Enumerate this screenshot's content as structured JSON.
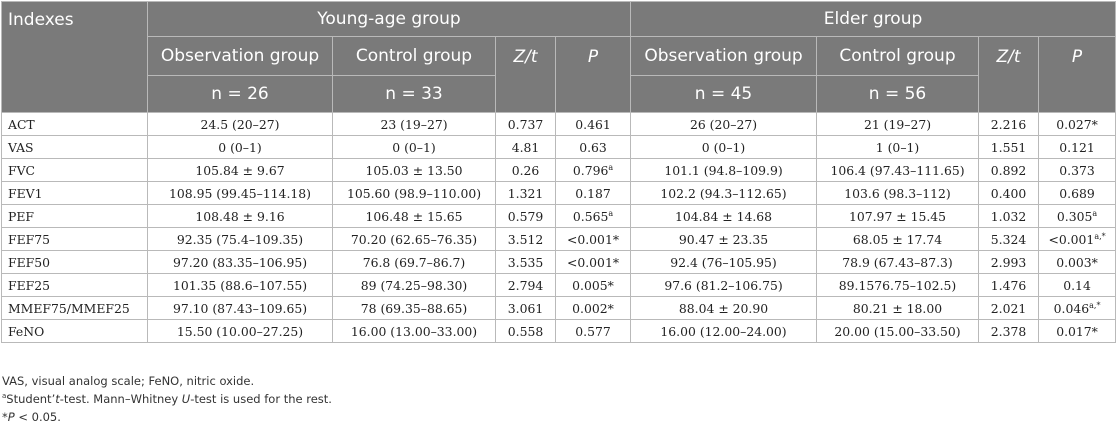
{
  "header": {
    "indexes": "Indexes",
    "young_group": "Young-age group",
    "elder_group": "Elder group",
    "observation": "Observation group",
    "control": "Control group",
    "zt": "Z/t",
    "p": "P",
    "young_obs_n": "n = 26",
    "young_ctrl_n": "n = 33",
    "elder_obs_n": "n = 45",
    "elder_ctrl_n": "n = 56"
  },
  "rows": [
    {
      "index": "ACT",
      "y_obs": "24.5 (20–27)",
      "y_ctrl": "23 (19–27)",
      "y_zt": "0.737",
      "y_p": "0.461",
      "y_p_sup": "",
      "e_obs": "26 (20–27)",
      "e_ctrl": "21 (19–27)",
      "e_zt": "2.216",
      "e_p": "0.027*",
      "e_p_sup": ""
    },
    {
      "index": "VAS",
      "y_obs": "0 (0–1)",
      "y_ctrl": "0 (0–1)",
      "y_zt": "4.81",
      "y_p": "0.63",
      "y_p_sup": "",
      "e_obs": "0 (0–1)",
      "e_ctrl": "1 (0–1)",
      "e_zt": "1.551",
      "e_p": "0.121",
      "e_p_sup": ""
    },
    {
      "index": "FVC",
      "y_obs": "105.84 ± 9.67",
      "y_ctrl": "105.03 ± 13.50",
      "y_zt": "0.26",
      "y_p": "0.796",
      "y_p_sup": "a",
      "e_obs": "101.1 (94.8–109.9)",
      "e_ctrl": "106.4 (97.43–111.65)",
      "e_zt": "0.892",
      "e_p": "0.373",
      "e_p_sup": ""
    },
    {
      "index": "FEV1",
      "y_obs": "108.95 (99.45–114.18)",
      "y_ctrl": "105.60 (98.9–110.00)",
      "y_zt": "1.321",
      "y_p": "0.187",
      "y_p_sup": "",
      "e_obs": "102.2 (94.3–112.65)",
      "e_ctrl": "103.6 (98.3–112)",
      "e_zt": "0.400",
      "e_p": "0.689",
      "e_p_sup": ""
    },
    {
      "index": "PEF",
      "y_obs": "108.48 ± 9.16",
      "y_ctrl": "106.48 ± 15.65",
      "y_zt": "0.579",
      "y_p": "0.565",
      "y_p_sup": "a",
      "e_obs": "104.84 ± 14.68",
      "e_ctrl": "107.97 ± 15.45",
      "e_zt": "1.032",
      "e_p": "0.305",
      "e_p_sup": "a"
    },
    {
      "index": "FEF75",
      "y_obs": "92.35 (75.4–109.35)",
      "y_ctrl": "70.20 (62.65–76.35)",
      "y_zt": "3.512",
      "y_p": "<0.001*",
      "y_p_sup": "",
      "e_obs": "90.47 ± 23.35",
      "e_ctrl": "68.05 ± 17.74",
      "e_zt": "5.324",
      "e_p": "<0.001",
      "e_p_sup": "a,*"
    },
    {
      "index": "FEF50",
      "y_obs": "97.20 (83.35–106.95)",
      "y_ctrl": "76.8 (69.7–86.7)",
      "y_zt": "3.535",
      "y_p": "<0.001*",
      "y_p_sup": "",
      "e_obs": "92.4 (76–105.95)",
      "e_ctrl": "78.9 (67.43–87.3)",
      "e_zt": "2.993",
      "e_p": "0.003*",
      "e_p_sup": ""
    },
    {
      "index": "FEF25",
      "y_obs": "101.35 (88.6–107.55)",
      "y_ctrl": "89 (74.25–98.30)",
      "y_zt": "2.794",
      "y_p": "0.005*",
      "y_p_sup": "",
      "e_obs": "97.6 (81.2–106.75)",
      "e_ctrl": "89.1576.75–102.5)",
      "e_zt": "1.476",
      "e_p": "0.14",
      "e_p_sup": ""
    },
    {
      "index": "MMEF75/MMEF25",
      "y_obs": "97.10 (87.43–109.65)",
      "y_ctrl": "78 (69.35–88.65)",
      "y_zt": "3.061",
      "y_p": "0.002*",
      "y_p_sup": "",
      "e_obs": "88.04 ± 20.90",
      "e_ctrl": "80.21 ± 18.00",
      "e_zt": "2.021",
      "e_p": "0.046",
      "e_p_sup": "a,*"
    },
    {
      "index": "FeNO",
      "y_obs": "15.50 (10.00–27.25)",
      "y_ctrl": "16.00 (13.00–33.00)",
      "y_zt": "0.558",
      "y_p": "0.577",
      "y_p_sup": "",
      "e_obs": "16.00 (12.00–24.00)",
      "e_ctrl": "20.00 (15.00–33.50)",
      "e_zt": "2.378",
      "e_p": "0.017*",
      "e_p_sup": ""
    }
  ],
  "notes": {
    "line1": "VAS, visual analog scale; FeNO, nitric oxide.",
    "line2_sup": "a",
    "line2_a": "Student’",
    "line2_t": "t",
    "line2_b": "-test. Mann–Whitney ",
    "line2_u": "U",
    "line2_c": "-test is used for the rest.",
    "line3_star": "*",
    "line3_p": "P",
    "line3_rest": " < 0.05."
  }
}
